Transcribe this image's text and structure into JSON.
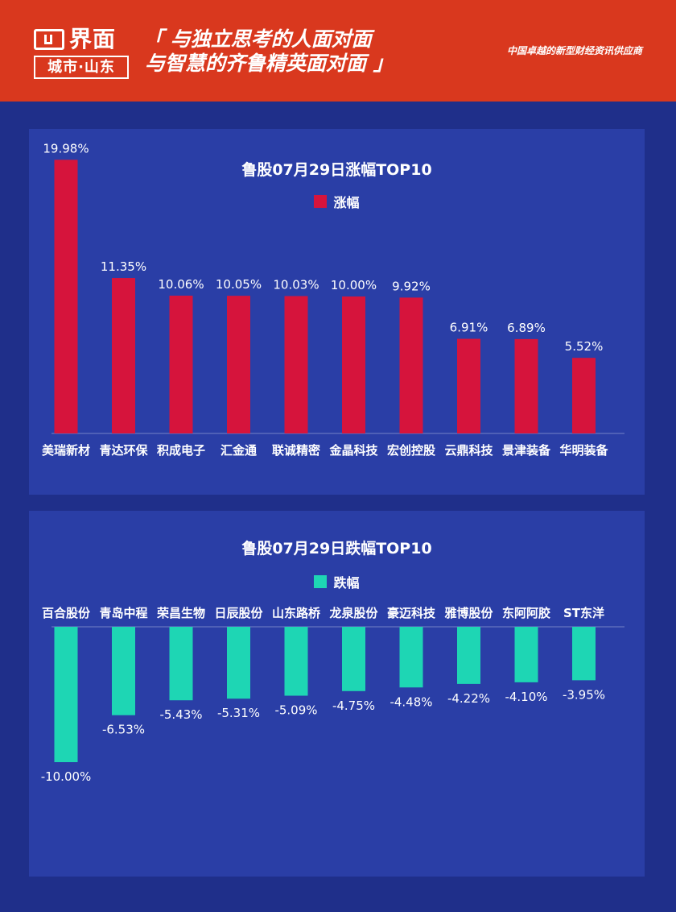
{
  "header": {
    "logo_name": "界面",
    "logo_sub": "城市·山东",
    "slogan_line1": "「 与独立思考的人面对面",
    "slogan_line2": "与智慧的齐鲁精英面对面 」",
    "tagline": "中国卓越的新型财经资讯供应商"
  },
  "colors": {
    "header_bg": "#d9381e",
    "page_bg": "#1f2f8a",
    "panel_bg": "#2a3ea6",
    "rise_bar": "#d6143c",
    "fall_bar": "#1ed6b4"
  },
  "chart_data": [
    {
      "type": "bar",
      "title": "鲁股07月29日涨幅TOP10",
      "series": [
        {
          "name": "涨幅",
          "values": [
            19.98,
            11.35,
            10.06,
            10.05,
            10.03,
            10.0,
            9.92,
            6.91,
            6.89,
            5.52
          ]
        }
      ],
      "categories": [
        "美瑞新材",
        "青达环保",
        "积成电子",
        "汇金通",
        "联诚精密",
        "金晶科技",
        "宏创控股",
        "云鼎科技",
        "景津装备",
        "华明装备"
      ],
      "labels": [
        "19.98%",
        "11.35%",
        "10.06%",
        "10.05%",
        "10.03%",
        "10.00%",
        "9.92%",
        "6.91%",
        "6.89%",
        "5.52%"
      ],
      "ylim": [
        0,
        20
      ],
      "legend": "top-center",
      "grid": false
    },
    {
      "type": "bar",
      "title": "鲁股07月29日跌幅TOP10",
      "series": [
        {
          "name": "跌幅",
          "values": [
            -10.0,
            -6.53,
            -5.43,
            -5.31,
            -5.09,
            -4.75,
            -4.48,
            -4.22,
            -4.1,
            -3.95
          ]
        }
      ],
      "categories": [
        "百合股份",
        "青岛中程",
        "荣昌生物",
        "日辰股份",
        "山东路桥",
        "龙泉股份",
        "豪迈科技",
        "雅博股份",
        "东阿阿胶",
        "ST东洋"
      ],
      "labels": [
        "-10.00%",
        "-6.53%",
        "-5.43%",
        "-5.31%",
        "-5.09%",
        "-4.75%",
        "-4.48%",
        "-4.22%",
        "-4.10%",
        "-3.95%"
      ],
      "ylim": [
        -10,
        0
      ],
      "legend": "top-center",
      "grid": false
    }
  ]
}
